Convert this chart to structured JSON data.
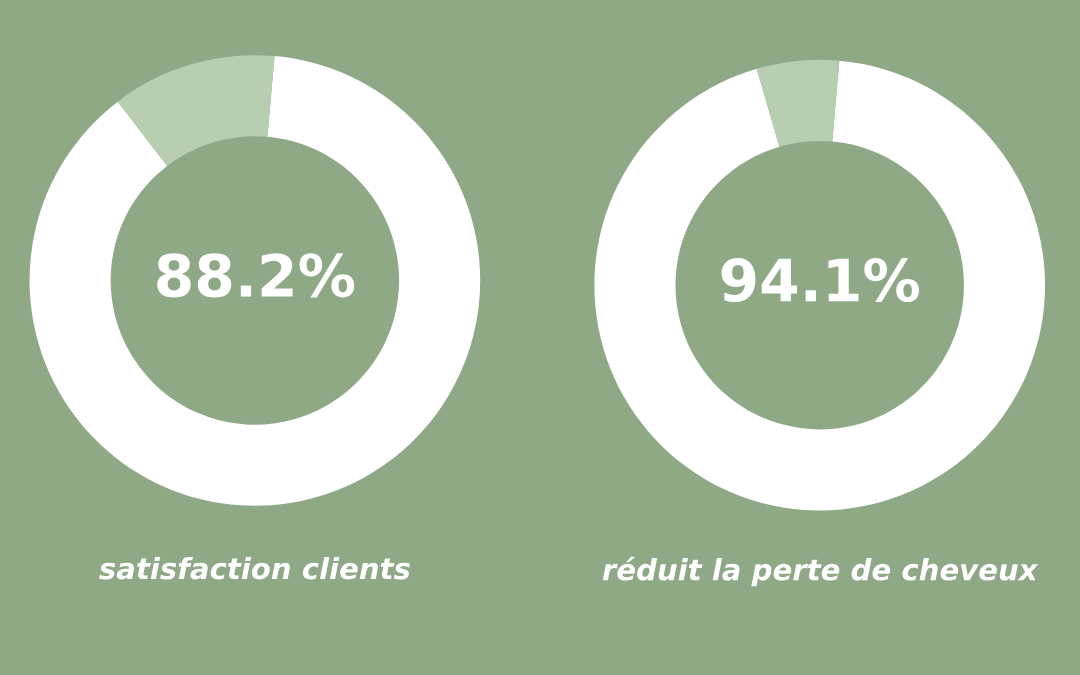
{
  "chart_data": [
    {
      "type": "donut",
      "title": "satisfaction clients",
      "categories": [
        null,
        null
      ],
      "values": [
        88.2,
        11.8
      ],
      "colors": [
        "#ffffff",
        "#b8ceb0"
      ],
      "value_labels": [
        "88.2%",
        null
      ]
    },
    {
      "type": "donut",
      "title": "réduit la perte de cheveux",
      "categories": [
        null,
        null
      ],
      "values": [
        94.1,
        5.9
      ],
      "colors": [
        "#ffffff",
        "#b8ceb0"
      ],
      "value_labels": [
        "94.1%",
        null
      ]
    }
  ]
}
